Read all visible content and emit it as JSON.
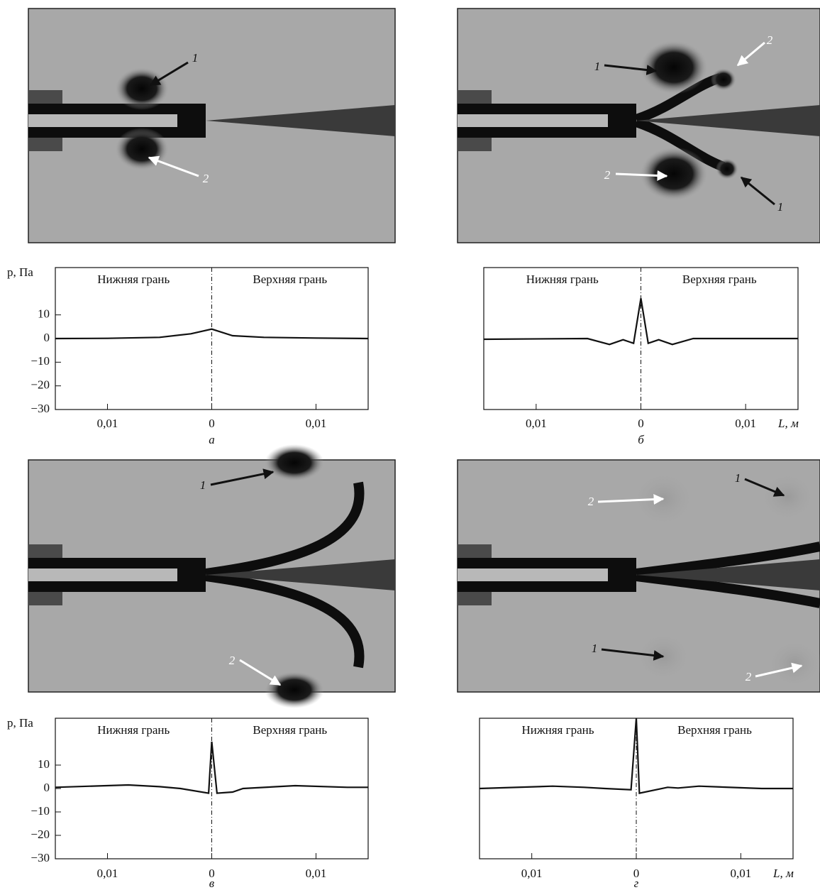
{
  "flow_images": [
    {
      "annotations": [
        {
          "label": "1"
        },
        {
          "label": "2"
        }
      ]
    },
    {
      "annotations": [
        {
          "label": "1"
        },
        {
          "label": "2"
        },
        {
          "label": "2"
        },
        {
          "label": "1"
        }
      ]
    },
    {
      "annotations": [
        {
          "label": "1"
        },
        {
          "label": "2"
        }
      ]
    },
    {
      "annotations": [
        {
          "label": "1"
        },
        {
          "label": "2"
        },
        {
          "label": "1"
        },
        {
          "label": "2"
        }
      ]
    }
  ],
  "chart_data": [
    {
      "type": "line",
      "panel_label": "а",
      "ylabel": "p, Па",
      "face_labels": [
        "Нижняя грань",
        "Верхняя грань"
      ],
      "x": [
        -0.015,
        -0.01,
        -0.005,
        -0.002,
        0,
        0.002,
        0.005,
        0.01,
        0.015
      ],
      "values": [
        0,
        0.1,
        0.5,
        2,
        4,
        1.2,
        0.5,
        0.2,
        0
      ],
      "color": "#111111",
      "xlim": [
        -0.015,
        0.015
      ],
      "ylim": [
        -30,
        30
      ],
      "xticks": [
        {
          "value": -0.01,
          "label": "0,01"
        },
        0,
        {
          "value": 0.01,
          "label": "0,01"
        }
      ],
      "yticks": [
        {
          "value": -30,
          "label": "−30"
        },
        {
          "value": -20,
          "label": "−20"
        },
        {
          "value": -10,
          "label": "−10"
        },
        0,
        10
      ]
    },
    {
      "type": "line",
      "panel_label": "б",
      "xlabel": "L, м",
      "face_labels": [
        "Нижняя грань",
        "Верхняя грань"
      ],
      "x": [
        -0.015,
        -0.0051,
        -0.003,
        -0.0017,
        -0.0007,
        0,
        0.0007,
        0.0017,
        0.003,
        0.005,
        0.015
      ],
      "values": [
        -0.3,
        0,
        -2.5,
        -0.5,
        -2,
        17,
        -2,
        -0.5,
        -2.5,
        0,
        0
      ],
      "color": "#111111",
      "xlim": [
        -0.015,
        0.015
      ],
      "ylim": [
        -30,
        30
      ],
      "xticks": [
        {
          "value": -0.01,
          "label": "0,01"
        },
        0,
        {
          "value": 0.01,
          "label": "0,01"
        }
      ]
    },
    {
      "type": "line",
      "panel_label": "в",
      "ylabel": "p, Па",
      "face_labels": [
        "Нижняя грань",
        "Верхняя грань"
      ],
      "x": [
        -0.015,
        -0.008,
        -0.005,
        -0.003,
        -0.0003,
        0,
        0.0005,
        0.002,
        0.003,
        0.008,
        0.013,
        0.015
      ],
      "values": [
        0.5,
        1.5,
        0.8,
        0,
        -2,
        20,
        -2,
        -1.5,
        0,
        1.2,
        0.5,
        0.5
      ],
      "color": "#111111",
      "xlim": [
        -0.015,
        0.015
      ],
      "ylim": [
        -30,
        30
      ],
      "xticks": [
        {
          "value": -0.01,
          "label": "0,01"
        },
        0,
        {
          "value": 0.01,
          "label": "0,01"
        }
      ],
      "yticks": [
        {
          "value": -30,
          "label": "−30"
        },
        {
          "value": -20,
          "label": "−20"
        },
        {
          "value": -10,
          "label": "−10"
        },
        0,
        10
      ]
    },
    {
      "type": "line",
      "panel_label": "г",
      "xlabel": "L, м",
      "face_labels": [
        "Нижняя грань",
        "Верхняя грань"
      ],
      "x": [
        -0.015,
        -0.008,
        -0.005,
        -0.003,
        -0.0005,
        0,
        0.0003,
        0.003,
        0.004,
        0.006,
        0.012,
        0.015
      ],
      "values": [
        0,
        1,
        0.5,
        0,
        -0.5,
        30,
        -2,
        0.5,
        0.2,
        1,
        0,
        0
      ],
      "color": "#111111",
      "xlim": [
        -0.015,
        0.015
      ],
      "ylim": [
        -30,
        30
      ],
      "xticks": [
        {
          "value": -0.01,
          "label": "0,01"
        },
        0,
        {
          "value": 0.01,
          "label": "0,01"
        }
      ]
    }
  ]
}
